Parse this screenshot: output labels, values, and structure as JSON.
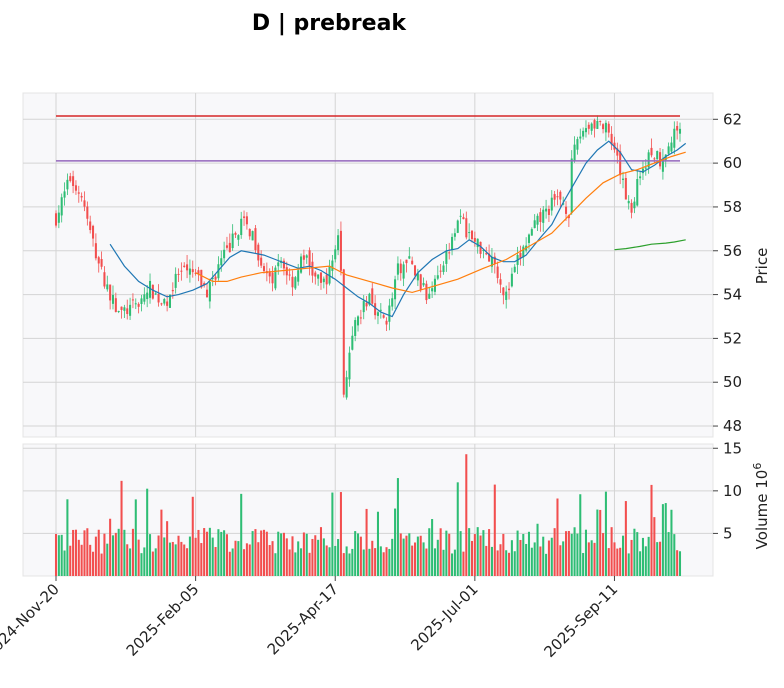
{
  "chart_data": {
    "type": "candlestick",
    "title": "D | prebreak",
    "colors": {
      "up": "#2ebd74",
      "down": "#f24e4e",
      "ma_short": "#1f77b4",
      "ma_long": "#ff7f0e",
      "ma_other": "#2ca02c",
      "resistance": "#d62728",
      "support": "#9467bd",
      "plot_bg": "#f8f8fa",
      "grid": "#d4d4d4"
    },
    "price_axis": {
      "label": "Price",
      "ylim": [
        47.5,
        63.2
      ],
      "ticks": [
        48,
        50,
        52,
        54,
        56,
        58,
        60,
        62
      ]
    },
    "volume_axis": {
      "label": "Volume  10",
      "label_exp": "6",
      "ylim": [
        0,
        15.5
      ],
      "ticks": [
        5,
        10,
        15
      ]
    },
    "x_axis": {
      "n_bars": 220,
      "tick_labels": [
        "2024-Nov-20",
        "2025-Feb-05",
        "2025-Apr-17",
        "2025-Jul-01",
        "2025-Sep-11"
      ],
      "tick_index": [
        0,
        49,
        98,
        147,
        196
      ]
    },
    "horizontal_lines": [
      {
        "name": "resistance",
        "value": 62.15,
        "color": "#d62728"
      },
      {
        "name": "support",
        "value": 60.1,
        "color": "#9467bd"
      }
    ],
    "price_path": [
      [
        0,
        57.5
      ],
      [
        5,
        59.3
      ],
      [
        9,
        58.5
      ],
      [
        12,
        56.8
      ],
      [
        16,
        55.0
      ],
      [
        19,
        54.0
      ],
      [
        22,
        53.1
      ],
      [
        28,
        53.5
      ],
      [
        33,
        54.3
      ],
      [
        38,
        53.5
      ],
      [
        43,
        54.9
      ],
      [
        48,
        55.0
      ],
      [
        53,
        54.1
      ],
      [
        57,
        55.3
      ],
      [
        61,
        56.2
      ],
      [
        65,
        57.3
      ],
      [
        69,
        56.8
      ],
      [
        71,
        55.9
      ],
      [
        75,
        54.5
      ],
      [
        79,
        55.5
      ],
      [
        83,
        54.6
      ],
      [
        87,
        55.8
      ],
      [
        90,
        55.0
      ],
      [
        93,
        54.4
      ],
      [
        96,
        55.0
      ],
      [
        99,
        56.8
      ],
      [
        100,
        55.0
      ],
      [
        101,
        49.5
      ],
      [
        102,
        50.5
      ],
      [
        105,
        52.5
      ],
      [
        110,
        54.0
      ],
      [
        113,
        53.1
      ],
      [
        116,
        52.9
      ],
      [
        118,
        53.8
      ],
      [
        120,
        55.1
      ],
      [
        124,
        55.5
      ],
      [
        128,
        54.5
      ],
      [
        130,
        53.9
      ],
      [
        133,
        54.9
      ],
      [
        137,
        55.8
      ],
      [
        141,
        57.6
      ],
      [
        146,
        56.5
      ],
      [
        150,
        56.1
      ],
      [
        154,
        55.5
      ],
      [
        157,
        54.2
      ],
      [
        158,
        53.9
      ],
      [
        162,
        55.5
      ],
      [
        166,
        56.6
      ],
      [
        170,
        57.5
      ],
      [
        174,
        58.1
      ],
      [
        177,
        58.4
      ],
      [
        180,
        57.8
      ],
      [
        181,
        59.9
      ],
      [
        183,
        61.1
      ],
      [
        186,
        61.7
      ],
      [
        190,
        61.9
      ],
      [
        193,
        61.5
      ],
      [
        197,
        60.0
      ],
      [
        200,
        58.6
      ],
      [
        202,
        57.9
      ],
      [
        205,
        59.6
      ],
      [
        209,
        60.5
      ],
      [
        212,
        60.2
      ],
      [
        216,
        61.0
      ],
      [
        219,
        61.9
      ],
      [
        220,
        60.5
      ],
      [
        221,
        60.3
      ]
    ],
    "ma_short": [
      [
        19,
        56.3
      ],
      [
        24,
        55.3
      ],
      [
        29,
        54.6
      ],
      [
        34,
        54.2
      ],
      [
        39,
        53.9
      ],
      [
        43,
        54.0
      ],
      [
        48,
        54.2
      ],
      [
        53,
        54.5
      ],
      [
        57,
        55.1
      ],
      [
        61,
        55.7
      ],
      [
        65,
        56.0
      ],
      [
        69,
        55.9
      ],
      [
        73,
        55.8
      ],
      [
        77,
        55.6
      ],
      [
        81,
        55.4
      ],
      [
        85,
        55.2
      ],
      [
        89,
        55.3
      ],
      [
        93,
        55.1
      ],
      [
        98,
        54.7
      ],
      [
        102,
        54.3
      ],
      [
        106,
        53.9
      ],
      [
        110,
        53.6
      ],
      [
        114,
        53.2
      ],
      [
        118,
        53.0
      ],
      [
        122,
        54.0
      ],
      [
        127,
        55.0
      ],
      [
        132,
        55.6
      ],
      [
        137,
        56.0
      ],
      [
        141,
        56.1
      ],
      [
        145,
        56.5
      ],
      [
        149,
        56.2
      ],
      [
        153,
        55.7
      ],
      [
        157,
        55.5
      ],
      [
        161,
        55.5
      ],
      [
        165,
        55.8
      ],
      [
        170,
        56.6
      ],
      [
        174,
        57.2
      ],
      [
        178,
        58.2
      ],
      [
        182,
        59.1
      ],
      [
        186,
        60.0
      ],
      [
        190,
        60.6
      ],
      [
        194,
        61.0
      ],
      [
        198,
        60.5
      ],
      [
        202,
        59.7
      ],
      [
        206,
        59.6
      ],
      [
        210,
        59.9
      ],
      [
        214,
        60.3
      ],
      [
        218,
        60.6
      ],
      [
        221,
        60.9
      ]
    ],
    "ma_long": [
      [
        49,
        55.0
      ],
      [
        55,
        54.6
      ],
      [
        60,
        54.6
      ],
      [
        65,
        54.8
      ],
      [
        72,
        55.0
      ],
      [
        80,
        55.1
      ],
      [
        88,
        55.2
      ],
      [
        96,
        55.3
      ],
      [
        102,
        54.9
      ],
      [
        110,
        54.6
      ],
      [
        118,
        54.3
      ],
      [
        125,
        54.1
      ],
      [
        133,
        54.4
      ],
      [
        141,
        54.7
      ],
      [
        150,
        55.2
      ],
      [
        158,
        55.6
      ],
      [
        166,
        56.2
      ],
      [
        174,
        56.8
      ],
      [
        180,
        57.6
      ],
      [
        186,
        58.4
      ],
      [
        192,
        59.1
      ],
      [
        198,
        59.5
      ],
      [
        204,
        59.7
      ],
      [
        210,
        60.0
      ],
      [
        216,
        60.3
      ],
      [
        221,
        60.5
      ]
    ],
    "ma_other": [
      [
        196,
        56.05
      ],
      [
        200,
        56.1
      ],
      [
        205,
        56.2
      ],
      [
        209,
        56.3
      ],
      [
        214,
        56.35
      ],
      [
        217,
        56.4
      ],
      [
        221,
        56.5
      ]
    ]
  }
}
